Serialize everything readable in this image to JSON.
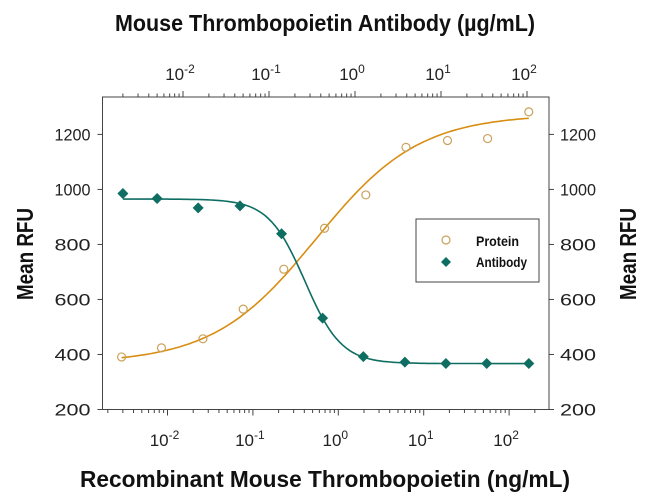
{
  "chart_data": {
    "type": "scatter",
    "title": "Mouse Thrombopoietin Antibody (µg/mL)",
    "xlabel": "Recombinant Mouse Thrombopoietin (ng/mL)",
    "ylabel": "Mean RFU",
    "ylabel_right": "Mean RFU",
    "x_scale": "log",
    "xlim": [
      0.0015,
      330
    ],
    "x_top_lim": [
      0.0012,
      200
    ],
    "ylim": [
      200,
      1336
    ],
    "y_ticks": [
      200,
      400,
      600,
      800,
      1000,
      1200
    ],
    "x_ticks": [
      {
        "base": "10",
        "exp": "-2"
      },
      {
        "base": "10",
        "exp": "-1"
      },
      {
        "base": "10",
        "exp": "0"
      },
      {
        "base": "10",
        "exp": "1"
      },
      {
        "base": "10",
        "exp": "2"
      }
    ],
    "grid": false,
    "legend_position": "right-middle",
    "series": [
      {
        "name": "Protein",
        "axis": "bottom",
        "marker": "open-circle",
        "color": "#D88E12",
        "marker_color": "#C9A15A",
        "x": [
          0.0029,
          0.0085,
          0.026,
          0.077,
          0.23,
          0.69,
          2.1,
          6.2,
          19,
          56,
          170
        ],
        "y": [
          391,
          424,
          457,
          565,
          710,
          859,
          980,
          1153,
          1178,
          1185,
          1282
        ]
      },
      {
        "name": "Antibody",
        "axis": "top",
        "marker": "filled-diamond",
        "color": "#0E6E62",
        "marker_color": "#0E6E62",
        "x": [
          0.002,
          0.005,
          0.015,
          0.046,
          0.14,
          0.42,
          1.25,
          3.8,
          11.4,
          34,
          105
        ],
        "y": [
          985,
          967,
          933,
          940,
          839,
          532,
          392,
          372,
          367,
          367,
          367
        ]
      }
    ]
  }
}
